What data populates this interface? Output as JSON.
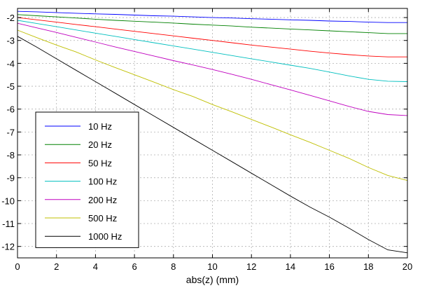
{
  "chart_data": {
    "type": "line",
    "title": "",
    "xlabel": "abs(z) (mm)",
    "ylabel": "",
    "xlim": [
      0,
      20
    ],
    "ylim": [
      -12.5,
      -1.6
    ],
    "xticks": [
      0,
      2,
      4,
      6,
      8,
      10,
      12,
      14,
      16,
      18,
      20
    ],
    "yticks": [
      -2,
      -3,
      -4,
      -5,
      -6,
      -7,
      -8,
      -9,
      -10,
      -11,
      -12
    ],
    "grid": true,
    "legend_position": "lower-left",
    "x": [
      0,
      1,
      2,
      3,
      4,
      5,
      6,
      7,
      8,
      9,
      10,
      11,
      12,
      13,
      14,
      15,
      16,
      17,
      18,
      19,
      20
    ],
    "series": [
      {
        "name": "10 Hz",
        "color": "#0000ff",
        "values": [
          -1.73,
          -1.75,
          -1.78,
          -1.81,
          -1.84,
          -1.86,
          -1.89,
          -1.92,
          -1.94,
          -1.97,
          -2.0,
          -2.02,
          -2.05,
          -2.07,
          -2.1,
          -2.12,
          -2.15,
          -2.17,
          -2.2,
          -2.22,
          -2.22
        ]
      },
      {
        "name": "20 Hz",
        "color": "#008000",
        "values": [
          -1.87,
          -1.92,
          -1.97,
          -2.02,
          -2.07,
          -2.12,
          -2.16,
          -2.2,
          -2.24,
          -2.29,
          -2.33,
          -2.37,
          -2.42,
          -2.46,
          -2.5,
          -2.54,
          -2.58,
          -2.62,
          -2.66,
          -2.7,
          -2.7
        ]
      },
      {
        "name": "50 Hz",
        "color": "#ff0000",
        "values": [
          -2.0,
          -2.1,
          -2.2,
          -2.3,
          -2.4,
          -2.5,
          -2.6,
          -2.7,
          -2.8,
          -2.9,
          -3.0,
          -3.1,
          -3.2,
          -3.29,
          -3.38,
          -3.47,
          -3.55,
          -3.62,
          -3.68,
          -3.72,
          -3.72
        ]
      },
      {
        "name": "100 Hz",
        "color": "#00bfbf",
        "values": [
          -2.12,
          -2.26,
          -2.4,
          -2.54,
          -2.68,
          -2.82,
          -2.96,
          -3.1,
          -3.24,
          -3.38,
          -3.52,
          -3.66,
          -3.8,
          -3.94,
          -4.08,
          -4.22,
          -4.38,
          -4.55,
          -4.7,
          -4.78,
          -4.8
        ]
      },
      {
        "name": "200 Hz",
        "color": "#bf00bf",
        "values": [
          -2.25,
          -2.45,
          -2.65,
          -2.86,
          -3.07,
          -3.28,
          -3.48,
          -3.68,
          -3.88,
          -4.07,
          -4.27,
          -4.48,
          -4.7,
          -4.93,
          -5.16,
          -5.4,
          -5.64,
          -5.88,
          -6.1,
          -6.24,
          -6.28
        ]
      },
      {
        "name": "500 Hz",
        "color": "#bfbf00",
        "values": [
          -2.55,
          -2.88,
          -3.2,
          -3.5,
          -3.85,
          -4.18,
          -4.5,
          -4.82,
          -5.15,
          -5.45,
          -5.8,
          -6.12,
          -6.45,
          -6.78,
          -7.12,
          -7.45,
          -7.8,
          -8.15,
          -8.55,
          -8.9,
          -9.12
        ]
      },
      {
        "name": "1000 Hz",
        "color": "#000000",
        "values": [
          -2.82,
          -3.3,
          -3.8,
          -4.3,
          -4.8,
          -5.3,
          -5.8,
          -6.3,
          -6.8,
          -7.3,
          -7.8,
          -8.3,
          -8.8,
          -9.3,
          -9.8,
          -10.28,
          -10.72,
          -11.2,
          -11.7,
          -12.15,
          -12.28
        ]
      }
    ]
  }
}
